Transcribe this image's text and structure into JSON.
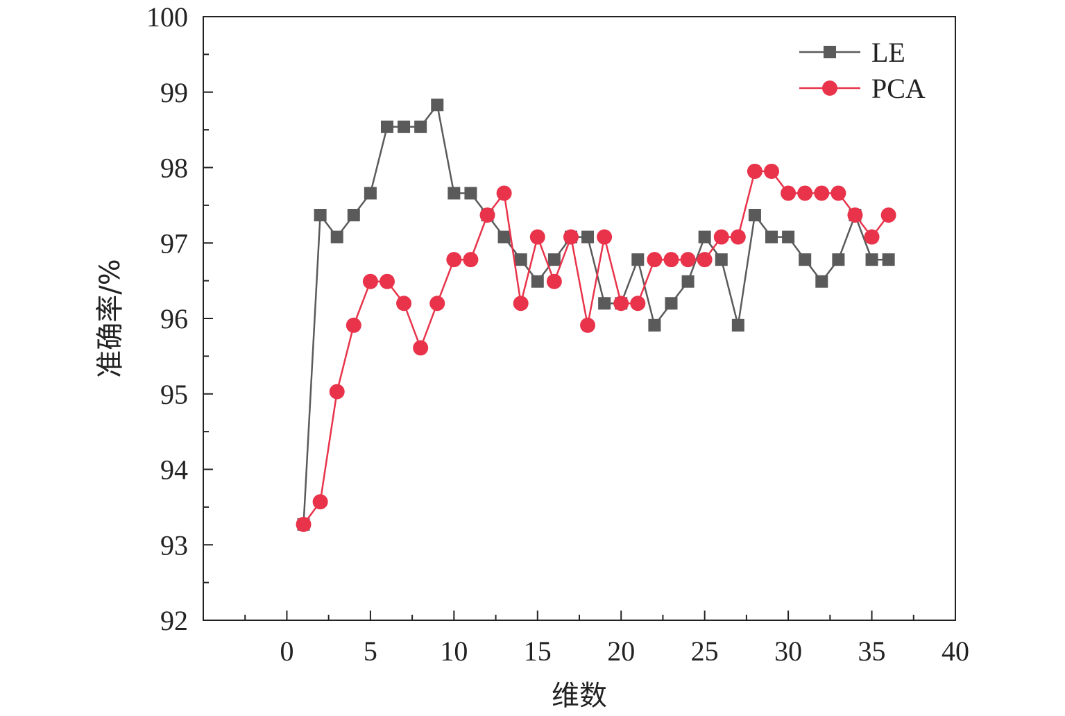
{
  "chart_data": {
    "type": "line",
    "xlabel": "维数",
    "ylabel": "准确率/%",
    "xlim": [
      -5,
      40
    ],
    "ylim": [
      92,
      100
    ],
    "xticks": [
      0,
      5,
      10,
      15,
      20,
      25,
      30,
      35,
      40
    ],
    "yticks": [
      92,
      93,
      94,
      95,
      96,
      97,
      98,
      99,
      100
    ],
    "x_minor_step": 2.5,
    "y_minor_step": 0.5,
    "grid": false,
    "legend_position": "top-right",
    "x": [
      1,
      2,
      3,
      4,
      5,
      6,
      7,
      8,
      9,
      10,
      11,
      12,
      13,
      14,
      15,
      16,
      17,
      18,
      19,
      20,
      21,
      22,
      23,
      24,
      25,
      26,
      27,
      28,
      29,
      30,
      31,
      32,
      33,
      34,
      35,
      36
    ],
    "series": [
      {
        "name": "LE",
        "marker": "square",
        "color": "#5a5a5a",
        "values": [
          93.27,
          97.37,
          97.08,
          97.37,
          97.66,
          98.54,
          98.54,
          98.54,
          98.83,
          97.66,
          97.66,
          97.37,
          97.08,
          96.78,
          96.49,
          96.78,
          97.08,
          97.08,
          96.2,
          96.2,
          96.78,
          95.91,
          96.2,
          96.49,
          97.08,
          96.78,
          95.91,
          97.37,
          97.08,
          97.08,
          96.78,
          96.49,
          96.78,
          97.37,
          96.78,
          96.78
        ]
      },
      {
        "name": "PCA",
        "marker": "circle",
        "color": "#e8334a",
        "values": [
          93.27,
          93.57,
          95.03,
          95.91,
          96.49,
          96.49,
          96.2,
          95.61,
          96.2,
          96.78,
          96.78,
          97.37,
          97.66,
          96.2,
          97.08,
          96.49,
          97.08,
          95.91,
          97.08,
          96.2,
          96.2,
          96.78,
          96.78,
          96.78,
          96.78,
          97.08,
          97.08,
          97.95,
          97.95,
          97.66,
          97.66,
          97.66,
          97.66,
          97.37,
          97.08,
          97.37
        ]
      }
    ]
  }
}
